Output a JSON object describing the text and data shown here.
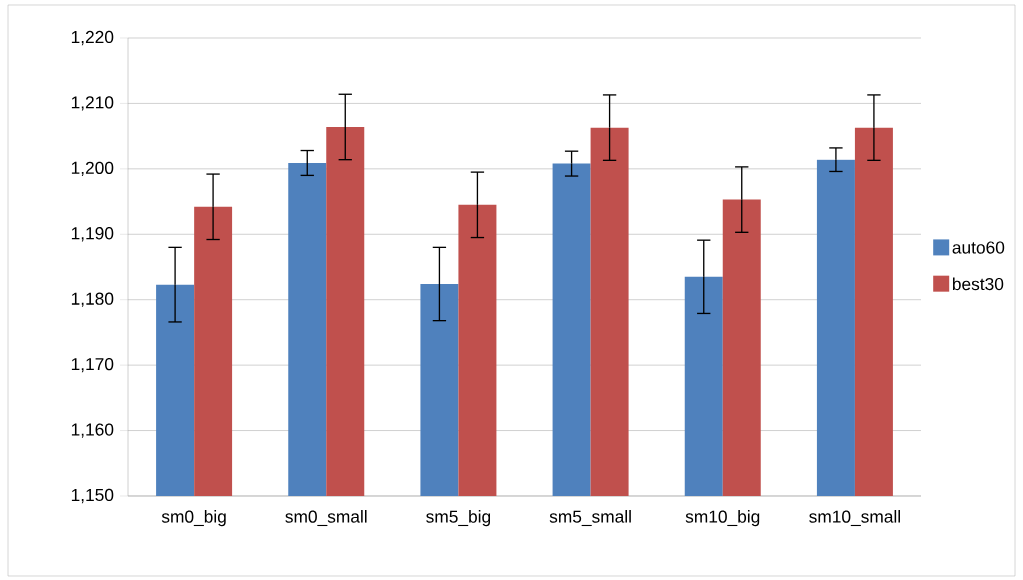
{
  "chart_data": {
    "type": "bar",
    "categories": [
      "sm0_big",
      "sm0_small",
      "sm5_big",
      "sm5_small",
      "sm10_big",
      "sm10_small"
    ],
    "series": [
      {
        "name": "auto60",
        "color": "#4f81bd",
        "values": [
          1182.3,
          1200.9,
          1182.4,
          1200.8,
          1183.5,
          1201.4
        ],
        "errors": [
          5.7,
          1.9,
          5.6,
          1.9,
          5.6,
          1.8
        ]
      },
      {
        "name": "best30",
        "color": "#c0504d",
        "values": [
          1194.2,
          1206.4,
          1194.5,
          1206.3,
          1195.3,
          1206.3
        ],
        "errors": [
          5.0,
          5.0,
          5.0,
          5.0,
          5.0,
          5.0
        ]
      }
    ],
    "ylim": [
      1150,
      1220
    ],
    "yticks": [
      {
        "value": 1150,
        "label": "1,150"
      },
      {
        "value": 1160,
        "label": "1,160"
      },
      {
        "value": 1170,
        "label": "1,170"
      },
      {
        "value": 1180,
        "label": "1,180"
      },
      {
        "value": 1190,
        "label": "1,190"
      },
      {
        "value": 1200,
        "label": "1,200"
      },
      {
        "value": 1210,
        "label": "1,210"
      },
      {
        "value": 1220,
        "label": "1,220"
      }
    ],
    "grid": "y",
    "legend": "right"
  }
}
